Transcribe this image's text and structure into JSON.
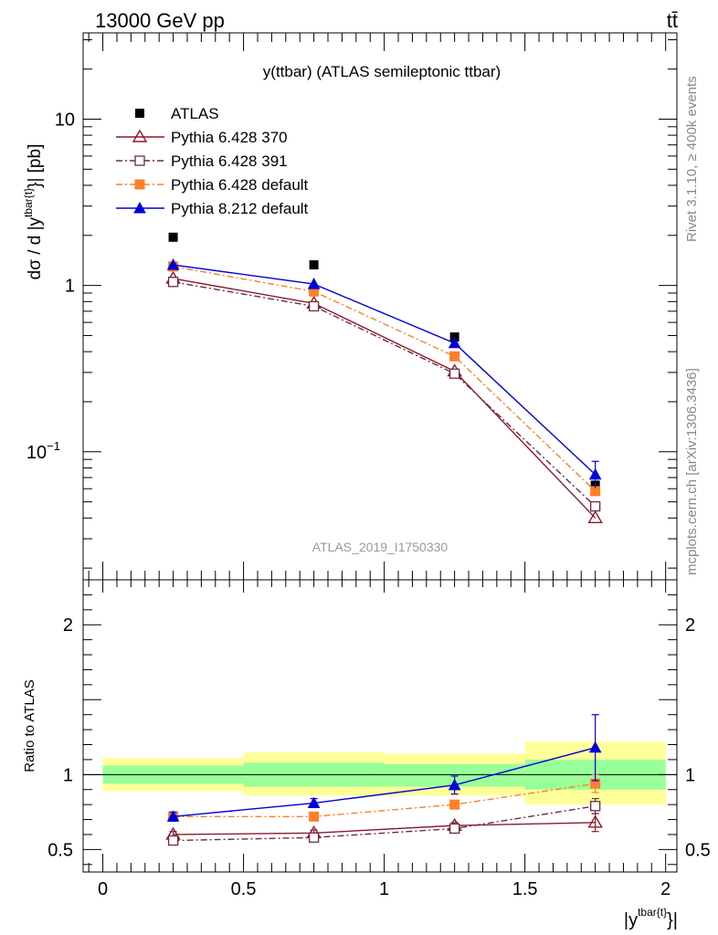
{
  "header": {
    "energy_label": "13000 GeV pp",
    "process_label": "tt̄"
  },
  "side_labels": {
    "rivet": "Rivet 3.1.10, ≥ 400k events",
    "mcplots": "mcplots.cern.ch [arXiv:1306.3436]"
  },
  "chart_data": {
    "type": "line",
    "title": "y(ttbar) (ATLAS semileptonic ttbar)",
    "watermark": "ATLAS_2019_I1750330",
    "xlabel": "|y",
    "xlabel_sup": "tbar{t}",
    "xlabel_close": "}|",
    "ylabel": "dσ / d |y",
    "ylabel_sup": "tbar{t}",
    "ylabel_close": "}| [pb]",
    "ratio_ylabel": "Ratio to ATLAS",
    "xlim": [
      -0.07,
      2.04
    ],
    "ylim_main": [
      0.017,
      33
    ],
    "ylim_ratio": [
      0.35,
      2.3
    ],
    "x_ticks": [
      {
        "value": 0,
        "label": "0"
      },
      {
        "value": 0.5,
        "label": "0.5"
      },
      {
        "value": 1,
        "label": "1"
      },
      {
        "value": 1.5,
        "label": "1.5"
      },
      {
        "value": 2,
        "label": "2"
      }
    ],
    "main_y_ticks": [
      {
        "value": 10,
        "label": "10"
      },
      {
        "value": 1,
        "label": "1"
      },
      {
        "value": 0.1,
        "label": "10",
        "exponent": "−1"
      }
    ],
    "ratio_y_ticks": [
      {
        "value": 2,
        "label": "2"
      },
      {
        "value": 1,
        "label": "1"
      },
      {
        "value": 0.5,
        "label": "0.5"
      }
    ],
    "bins": [
      {
        "low": 0,
        "high": 0.5
      },
      {
        "low": 0.5,
        "high": 1
      },
      {
        "low": 1,
        "high": 1.5
      },
      {
        "low": 1.5,
        "high": 2
      }
    ],
    "x": [
      0.25,
      0.75,
      1.25,
      1.75
    ],
    "data": {
      "name": "ATLAS",
      "color": "#000000",
      "values": [
        1.95,
        1.33,
        0.49,
        0.063
      ],
      "band_inner": [
        [
          0.94,
          1.06
        ],
        [
          0.92,
          1.08
        ],
        [
          0.92,
          1.07
        ],
        [
          0.9,
          1.1
        ]
      ],
      "band_outer": [
        [
          0.89,
          1.11
        ],
        [
          0.86,
          1.15
        ],
        [
          0.86,
          1.14
        ],
        [
          0.8,
          1.22
        ]
      ]
    },
    "series": [
      {
        "name": "Pythia 6.428 370",
        "color": "#8b1a2a",
        "dash": "",
        "marker": "triangle-open",
        "values": [
          1.1,
          0.78,
          0.305,
          0.04
        ],
        "ratio": [
          0.6,
          0.61,
          0.66,
          0.68
        ],
        "ratio_err": [
          0.02,
          0.02,
          0.02,
          0.06
        ]
      },
      {
        "name": "Pythia 6.428 391",
        "color": "#6b2c3c",
        "dash": "7,3,2,3",
        "marker": "square-open",
        "values": [
          1.05,
          0.75,
          0.295,
          0.047
        ],
        "ratio": [
          0.56,
          0.58,
          0.64,
          0.79
        ],
        "ratio_err": [
          0.02,
          0.02,
          0.02,
          0.05
        ]
      },
      {
        "name": "Pythia 6.428 default",
        "color": "#ff7f27",
        "dash": "7,3,2,3",
        "marker": "square-filled",
        "values": [
          1.3,
          0.92,
          0.375,
          0.058
        ],
        "ratio": [
          0.72,
          0.72,
          0.8,
          0.94
        ],
        "ratio_err": [
          0.02,
          0.02,
          0.02,
          0.06
        ]
      },
      {
        "name": "Pythia 8.212 default",
        "color": "#0000d8",
        "dash": "",
        "marker": "triangle-filled",
        "values": [
          1.33,
          1.02,
          0.45,
          0.073
        ],
        "ratio": [
          0.72,
          0.81,
          0.93,
          1.18
        ],
        "ratio_err": [
          0.03,
          0.03,
          0.06,
          0.22
        ]
      }
    ]
  }
}
